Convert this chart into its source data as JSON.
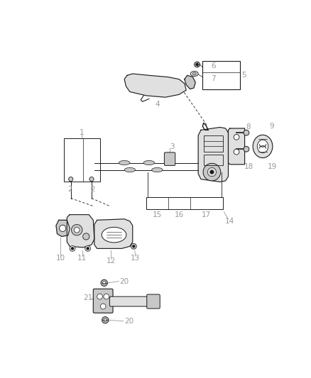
{
  "background": "#ffffff",
  "fig_width": 4.38,
  "fig_height": 5.33,
  "dpi": 100,
  "label_color": "#999999",
  "line_color": "#1a1a1a",
  "fill_light": "#e0e0e0",
  "fill_mid": "#c8c8c8",
  "fill_dark": "#b0b0b0"
}
